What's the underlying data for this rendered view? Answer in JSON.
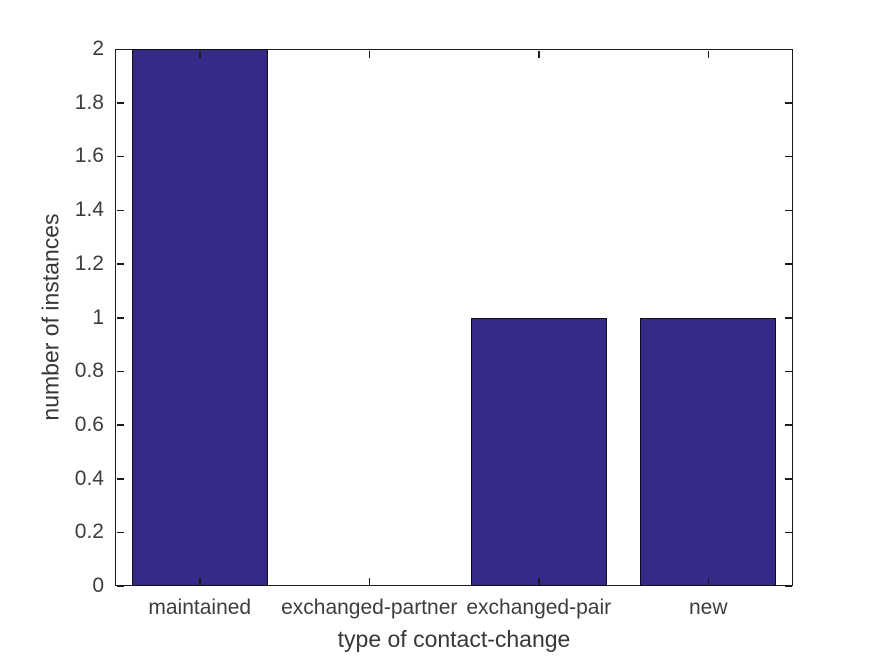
{
  "figure": {
    "background": "#ffffff"
  },
  "chart_data": {
    "type": "bar",
    "title": "",
    "categories": [
      "maintained",
      "exchanged-partner",
      "exchanged-pair",
      "new"
    ],
    "values": [
      2,
      0,
      1,
      1
    ],
    "xlabel": "type of contact-change",
    "ylabel": "number of instances",
    "ylim": [
      0,
      2
    ],
    "yticks": [
      0,
      0.2,
      0.4,
      0.6,
      0.8,
      1,
      1.2,
      1.4,
      1.6,
      1.8,
      2
    ],
    "ytick_labels": [
      "0",
      "0.2",
      "0.4",
      "0.6",
      "0.8",
      "1",
      "1.2",
      "1.4",
      "1.6",
      "1.8",
      "2"
    ],
    "bar_width_ratio": 0.8,
    "grid": false,
    "legend": null,
    "tick_direction": "in",
    "box": true,
    "colors": {
      "bar_fill": "#352A87",
      "bar_edge": "#0e0e0e",
      "axis": "#1c1c1c",
      "tick_label": "#3d3d3d",
      "axis_label": "#383838",
      "background": "#ffffff"
    }
  }
}
